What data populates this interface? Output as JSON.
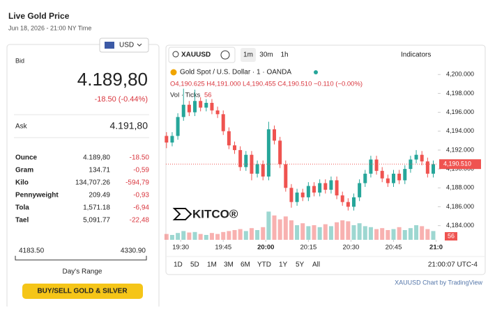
{
  "header": {
    "title": "Live Gold Price",
    "date": "Jun 18, 2026 - 21:00 NY Time",
    "currency": "USD"
  },
  "quote": {
    "bid_label": "Bid",
    "bid": "4.189,80",
    "change": "-18.50 (-0.44%)",
    "ask_label": "Ask",
    "ask": "4.191,80"
  },
  "table": {
    "rows": [
      [
        "Ounce",
        "4.189,80",
        "-18.50"
      ],
      [
        "Gram",
        "134.71",
        "-0,59"
      ],
      [
        "Kilo",
        "134,707.26",
        "-594,79"
      ],
      [
        "Pennyweight",
        "209.49",
        "-0,93"
      ],
      [
        "Tola",
        "1,571.18",
        "-6,94"
      ],
      [
        "Tael",
        "5,091.77",
        "-22,48"
      ]
    ]
  },
  "range": {
    "low": "4183.50",
    "high": "4330.90",
    "label": "Day's Range"
  },
  "button": "BUY/SELL GOLD & SILVER",
  "toolbar": {
    "symbol": "XAUUSD",
    "intervals": [
      "1m",
      "30m",
      "1h"
    ],
    "indicators": "Indicators"
  },
  "legend": {
    "name": "Gold Spot / U.S. Dollar · 1 · OANDA",
    "ohlc": "O4,190.625 H4,191.000 L4,190.455 C4,190.510 −0.110 (−0.00%)",
    "vol": "Vol · Ticks",
    "vol_value": "56"
  },
  "logo": "KITCO®",
  "ranges": [
    "1D",
    "5D",
    "1M",
    "3M",
    "6M",
    "YTD",
    "1Y",
    "5Y",
    "All"
  ],
  "clock": "21:00:07 UTC-4",
  "credit": "XAUUSD Chart by TradingView",
  "chart_data": {
    "type": "candlestick",
    "up_color": "#26a69a",
    "down_color": "#ef5350",
    "x": [
      25,
      27,
      29,
      31,
      33,
      35,
      37,
      39,
      41,
      43,
      45,
      47,
      49,
      51,
      53,
      55,
      57,
      59,
      61,
      63,
      65,
      67,
      69,
      71,
      73,
      75,
      77,
      79,
      81,
      83,
      85,
      87,
      89,
      91,
      93,
      95,
      97,
      99,
      101,
      103,
      105,
      107,
      109,
      111,
      113,
      115,
      117,
      119
    ],
    "open": [
      4193.5,
      4192.8,
      4193.5,
      4195.5,
      4196.8,
      4196.0,
      4197.2,
      4196.5,
      4197.0,
      4196.2,
      4195.8,
      4194.0,
      4192.5,
      4192.0,
      4190.2,
      4191.5,
      4189.5,
      4190.5,
      4189.2,
      4194.2,
      4193.0,
      4190.5,
      4188.0,
      4186.5,
      4187.5,
      4187.0,
      4188.2,
      4187.5,
      4188.5,
      4187.8,
      4188.8,
      4187.2,
      4186.5,
      4186.0,
      4187.0,
      4188.5,
      4189.5,
      4191.0,
      4189.8,
      4189.0,
      4188.5,
      4189.5,
      4188.8,
      4190.0,
      4191.0,
      4191.5,
      4190.8,
      4189.5
    ],
    "high": [
      4193.9,
      4193.9,
      4195.9,
      4198.5,
      4197.2,
      4198.4,
      4197.6,
      4197.4,
      4197.4,
      4196.6,
      4196.2,
      4194.4,
      4192.9,
      4192.4,
      4191.9,
      4191.9,
      4190.9,
      4190.9,
      4195.0,
      4194.6,
      4193.4,
      4190.9,
      4188.4,
      4187.9,
      4187.9,
      4188.6,
      4188.6,
      4188.9,
      4188.9,
      4189.2,
      4189.2,
      4187.6,
      4186.9,
      4187.4,
      4188.9,
      4189.9,
      4191.4,
      4191.4,
      4190.2,
      4189.4,
      4189.9,
      4189.9,
      4190.4,
      4191.4,
      4192.0,
      4191.9,
      4191.2,
      4190.9
    ],
    "low": [
      4192.2,
      4192.4,
      4193.1,
      4195.1,
      4195.6,
      4195.6,
      4196.1,
      4196.1,
      4195.8,
      4195.4,
      4193.6,
      4192.1,
      4191.6,
      4189.8,
      4189.8,
      4188.8,
      4189.1,
      4188.8,
      4188.8,
      4192.6,
      4190.1,
      4187.6,
      4185.9,
      4186.1,
      4186.6,
      4186.6,
      4187.1,
      4187.1,
      4187.4,
      4187.4,
      4186.8,
      4186.1,
      4185.6,
      4185.6,
      4186.6,
      4188.1,
      4189.1,
      4189.4,
      4188.6,
      4188.1,
      4188.1,
      4188.4,
      4188.4,
      4189.6,
      4190.6,
      4190.4,
      4189.1,
      4189.1
    ],
    "close": [
      4192.8,
      4193.5,
      4195.5,
      4196.8,
      4196.0,
      4197.2,
      4196.5,
      4197.0,
      4196.2,
      4195.8,
      4194.0,
      4192.5,
      4192.0,
      4190.2,
      4191.5,
      4189.5,
      4190.5,
      4189.2,
      4194.2,
      4193.0,
      4190.5,
      4188.0,
      4186.5,
      4187.5,
      4187.0,
      4188.2,
      4187.5,
      4188.5,
      4187.8,
      4188.8,
      4187.2,
      4186.5,
      4186.0,
      4187.0,
      4188.5,
      4189.5,
      4191.0,
      4189.8,
      4189.0,
      4188.5,
      4189.5,
      4188.8,
      4190.0,
      4191.0,
      4191.5,
      4190.8,
      4189.5,
      4190.5
    ],
    "volume": [
      12,
      10,
      14,
      18,
      15,
      16,
      12,
      10,
      14,
      12,
      16,
      18,
      20,
      22,
      18,
      24,
      20,
      26,
      58,
      50,
      42,
      48,
      40,
      30,
      34,
      28,
      30,
      26,
      32,
      28,
      36,
      40,
      38,
      30,
      34,
      28,
      26,
      22,
      24,
      20,
      22,
      26,
      20,
      24,
      30,
      28,
      22,
      18
    ],
    "volume_lim": [
      0,
      100
    ],
    "xlim": [
      24.8,
      120.6
    ],
    "xticks": [
      {
        "value": 30,
        "label": "19:30"
      },
      {
        "value": 45,
        "label": "19:45"
      },
      {
        "value": 60,
        "label": "20:00"
      },
      {
        "value": 75,
        "label": "20:15"
      },
      {
        "value": 90,
        "label": "20:30"
      },
      {
        "value": 105,
        "label": "20:45"
      },
      {
        "value": 120,
        "label": "21:0"
      }
    ],
    "ylim": [
      4182.5,
      4200.9
    ],
    "yticks": [
      {
        "value": 4184,
        "label": "4,184.000"
      },
      {
        "value": 4186,
        "label": "4,186.000"
      },
      {
        "value": 4188,
        "label": "4,188.000"
      },
      {
        "value": 4190,
        "label": "4,190.000"
      },
      {
        "value": 4192,
        "label": "4,192.000"
      },
      {
        "value": 4194,
        "label": "4,194.000"
      },
      {
        "value": 4196,
        "label": "4,196.000"
      },
      {
        "value": 4198,
        "label": "4,198.000"
      },
      {
        "value": 4200,
        "label": "4,200.000"
      }
    ],
    "last_price": {
      "value": 4190.51,
      "label": "4,190.510"
    }
  }
}
